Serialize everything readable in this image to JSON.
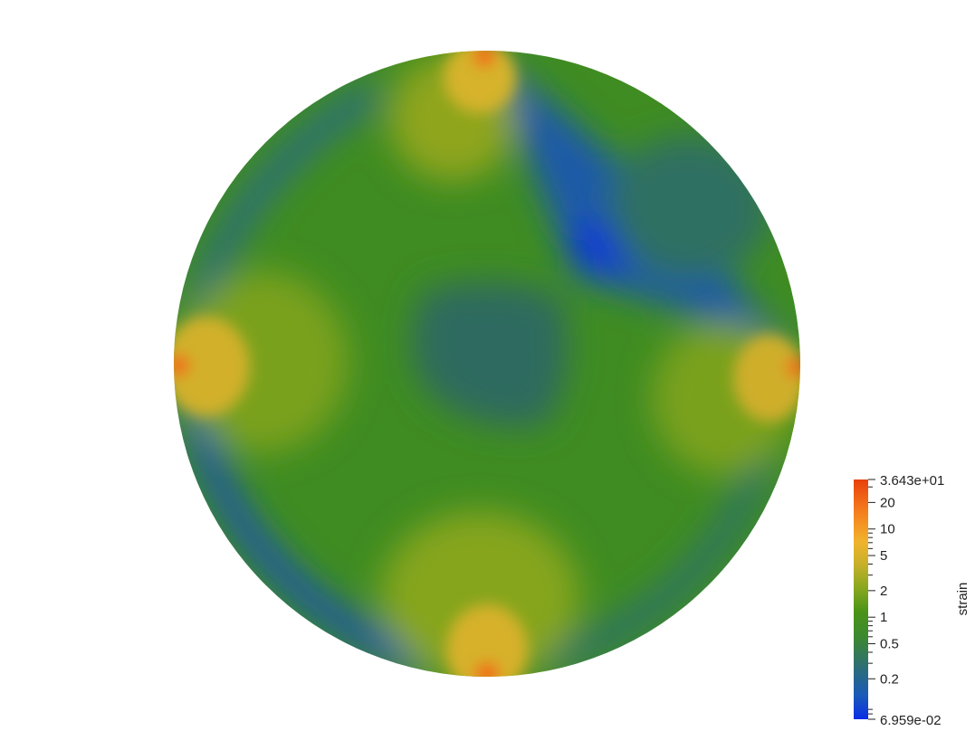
{
  "chart_data": {
    "type": "heatmap",
    "title": "",
    "field": "strain",
    "scale": "log",
    "domain": "disk",
    "colorbar": {
      "title": "strain",
      "min_label": "6.959e-02",
      "max_label": "3.643e+01",
      "min": 0.06959,
      "max": 36.43,
      "labeled_ticks": [
        {
          "value": 20,
          "label": "20"
        },
        {
          "value": 10,
          "label": "10"
        },
        {
          "value": 5,
          "label": "5"
        },
        {
          "value": 2,
          "label": "2"
        },
        {
          "value": 1,
          "label": "1"
        },
        {
          "value": 0.5,
          "label": "0.5"
        },
        {
          "value": 0.2,
          "label": "0.2"
        }
      ],
      "minor_ticks": [
        0.08,
        0.09,
        0.3,
        0.4,
        0.6,
        0.7,
        0.8,
        0.9,
        3,
        4,
        6,
        7,
        8,
        9,
        30
      ],
      "placement": "bottom-right",
      "colors": [
        "#0a2ee6",
        "#1a5bb8",
        "#2d6f73",
        "#3d8a2e",
        "#4a9418",
        "#8aa81f",
        "#c9b02a",
        "#f0b32c",
        "#f5801e",
        "#e8400c"
      ]
    },
    "hotspots": [
      {
        "position": "top",
        "peak": 36.43
      },
      {
        "position": "left",
        "peak": 36.43
      },
      {
        "position": "right",
        "peak": 36.43
      },
      {
        "position": "bottom",
        "peak": 36.43
      }
    ],
    "low_region": {
      "position": "upper-right",
      "min": 0.06959
    }
  }
}
